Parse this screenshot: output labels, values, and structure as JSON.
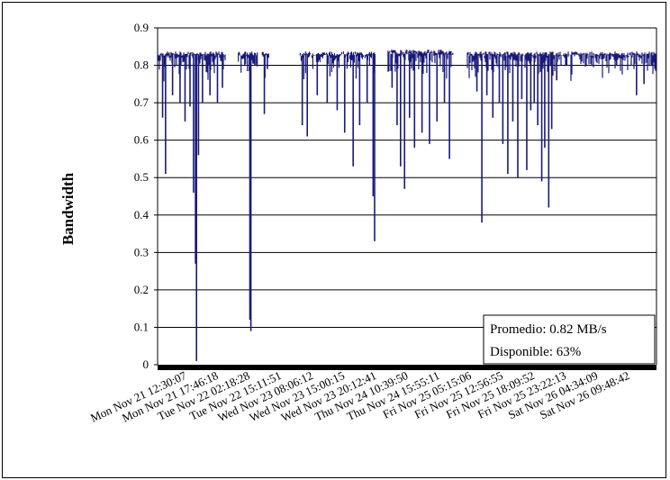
{
  "chart_data": {
    "type": "line",
    "title": "",
    "xlabel": "",
    "ylabel": "Bandwidth",
    "ylim": [
      0,
      0.9
    ],
    "yticks": [
      "0",
      "0.1",
      "0.2",
      "0.3",
      "0.4",
      "0.5",
      "0.6",
      "0.7",
      "0.8",
      "0.9"
    ],
    "grid": true,
    "x_tick_labels": [
      "Mon Nov 21 12:30:07",
      "Mon Nov 21 17:46:18",
      "Tue Nov 22 02:18:28",
      "Tue Nov 22 15:11:51",
      "Wed Nov 23 08:06:12",
      "Wed Nov 23 15:00:15",
      "Wed Nov 23 20:12:41",
      "Thu Nov 24 10:39:50",
      "Thu Nov 24 15:55:11",
      "Fri Nov 25 05:15:06",
      "Fri Nov 25 12:56:55",
      "Fri Nov 25 18:09:52",
      "Fri Nov 25 23:22:13",
      "Sat Nov 26 04:34:09",
      "Sat Nov 26 09:48:42"
    ],
    "series": [
      {
        "color": "#1a1a7a",
        "segments": [
          {
            "start": 0.0,
            "end": 0.138,
            "base": 0.83
          },
          {
            "start": 0.162,
            "end": 0.2,
            "base": 0.83
          },
          {
            "start": 0.21,
            "end": 0.224,
            "base": 0.83
          },
          {
            "start": 0.286,
            "end": 0.437,
            "base": 0.83
          },
          {
            "start": 0.462,
            "end": 0.593,
            "base": 0.835
          },
          {
            "start": 0.621,
            "end": 1.0,
            "base": 0.83
          }
        ],
        "dips": [
          {
            "pos": 0.01,
            "value": 0.66
          },
          {
            "pos": 0.016,
            "value": 0.51
          },
          {
            "pos": 0.03,
            "value": 0.72
          },
          {
            "pos": 0.045,
            "value": 0.7
          },
          {
            "pos": 0.055,
            "value": 0.65
          },
          {
            "pos": 0.065,
            "value": 0.69
          },
          {
            "pos": 0.072,
            "value": 0.46
          },
          {
            "pos": 0.076,
            "value": 0.27
          },
          {
            "pos": 0.078,
            "value": 0.01
          },
          {
            "pos": 0.082,
            "value": 0.56
          },
          {
            "pos": 0.09,
            "value": 0.7
          },
          {
            "pos": 0.105,
            "value": 0.72
          },
          {
            "pos": 0.12,
            "value": 0.7
          },
          {
            "pos": 0.13,
            "value": 0.74
          },
          {
            "pos": 0.18,
            "value": 0.82
          },
          {
            "pos": 0.185,
            "value": 0.12
          },
          {
            "pos": 0.187,
            "value": 0.09
          },
          {
            "pos": 0.195,
            "value": 0.8
          },
          {
            "pos": 0.214,
            "value": 0.67
          },
          {
            "pos": 0.22,
            "value": 0.79
          },
          {
            "pos": 0.29,
            "value": 0.64
          },
          {
            "pos": 0.3,
            "value": 0.61
          },
          {
            "pos": 0.32,
            "value": 0.72
          },
          {
            "pos": 0.34,
            "value": 0.7
          },
          {
            "pos": 0.36,
            "value": 0.68
          },
          {
            "pos": 0.375,
            "value": 0.62
          },
          {
            "pos": 0.392,
            "value": 0.53
          },
          {
            "pos": 0.405,
            "value": 0.64
          },
          {
            "pos": 0.42,
            "value": 0.7
          },
          {
            "pos": 0.432,
            "value": 0.45
          },
          {
            "pos": 0.435,
            "value": 0.33
          },
          {
            "pos": 0.47,
            "value": 0.74
          },
          {
            "pos": 0.48,
            "value": 0.64
          },
          {
            "pos": 0.487,
            "value": 0.53
          },
          {
            "pos": 0.495,
            "value": 0.47
          },
          {
            "pos": 0.505,
            "value": 0.66
          },
          {
            "pos": 0.515,
            "value": 0.58
          },
          {
            "pos": 0.53,
            "value": 0.62
          },
          {
            "pos": 0.545,
            "value": 0.59
          },
          {
            "pos": 0.56,
            "value": 0.65
          },
          {
            "pos": 0.575,
            "value": 0.7
          },
          {
            "pos": 0.585,
            "value": 0.55
          },
          {
            "pos": 0.64,
            "value": 0.73
          },
          {
            "pos": 0.65,
            "value": 0.38
          },
          {
            "pos": 0.66,
            "value": 0.72
          },
          {
            "pos": 0.672,
            "value": 0.66
          },
          {
            "pos": 0.685,
            "value": 0.7
          },
          {
            "pos": 0.692,
            "value": 0.59
          },
          {
            "pos": 0.702,
            "value": 0.51
          },
          {
            "pos": 0.712,
            "value": 0.65
          },
          {
            "pos": 0.722,
            "value": 0.5
          },
          {
            "pos": 0.73,
            "value": 0.71
          },
          {
            "pos": 0.74,
            "value": 0.52
          },
          {
            "pos": 0.748,
            "value": 0.68
          },
          {
            "pos": 0.755,
            "value": 0.7
          },
          {
            "pos": 0.762,
            "value": 0.64
          },
          {
            "pos": 0.77,
            "value": 0.49
          },
          {
            "pos": 0.776,
            "value": 0.58
          },
          {
            "pos": 0.784,
            "value": 0.42
          },
          {
            "pos": 0.79,
            "value": 0.63
          },
          {
            "pos": 0.8,
            "value": 0.76
          },
          {
            "pos": 0.82,
            "value": 0.8
          },
          {
            "pos": 0.85,
            "value": 0.81
          },
          {
            "pos": 0.88,
            "value": 0.81
          },
          {
            "pos": 0.92,
            "value": 0.8
          },
          {
            "pos": 0.96,
            "value": 0.72
          },
          {
            "pos": 0.975,
            "value": 0.75
          },
          {
            "pos": 0.99,
            "value": 0.81
          }
        ]
      }
    ],
    "annotation": {
      "line1": "Promedio: 0.82 MB/s",
      "line2": "Disponible: 63%"
    }
  }
}
